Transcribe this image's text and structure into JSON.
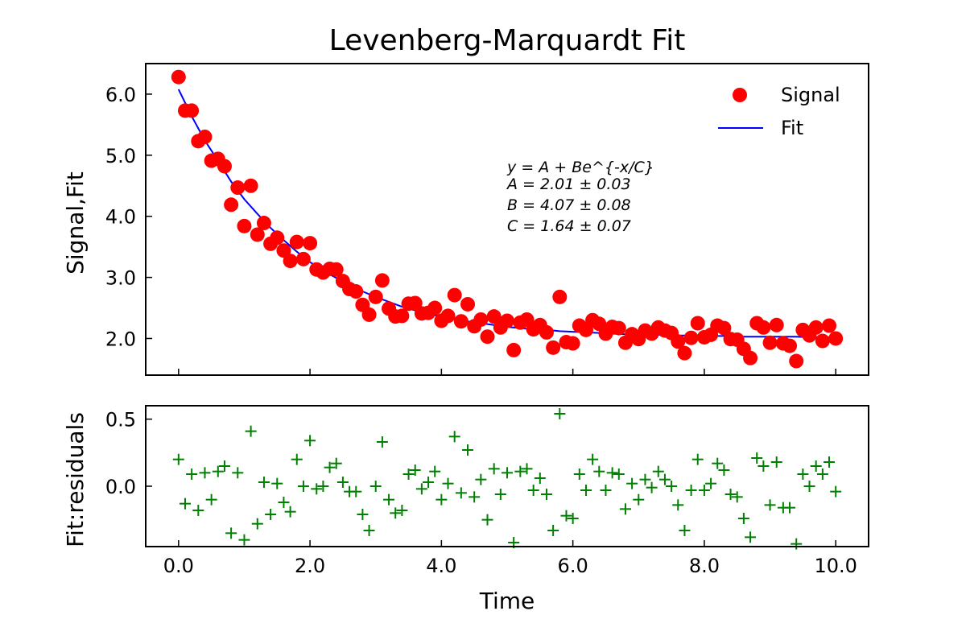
{
  "chart_data": [
    {
      "type": "scatter",
      "title": "Levenberg-Marquardt Fit",
      "xlabel": "",
      "ylabel": "Signal,Fit",
      "xlim": [
        -0.5,
        10.5
      ],
      "ylim": [
        1.4,
        6.5
      ],
      "yticks": [
        "2.0",
        "3.0",
        "4.0",
        "5.0",
        "6.0"
      ],
      "grid": false,
      "legend": {
        "placement": "top-right",
        "entries": [
          "Signal",
          "Fit"
        ]
      },
      "annotation": {
        "equation": "y = A + Be^{-x/C}",
        "lines": [
          "A = 2.01 ± 0.03",
          "B = 4.07 ± 0.08",
          "C = 1.64 ± 0.07"
        ]
      },
      "fit_params": {
        "A": 2.01,
        "B": 4.07,
        "C": 1.64
      },
      "series": [
        {
          "name": "Signal",
          "color": "#ff0000",
          "marker": "circle",
          "x": [
            0.0,
            0.1,
            0.2,
            0.3,
            0.4,
            0.5,
            0.6,
            0.7,
            0.8,
            0.9,
            1.0,
            1.1,
            1.2,
            1.3,
            1.4,
            1.5,
            1.6,
            1.7,
            1.8,
            1.9,
            2.0,
            2.1,
            2.2,
            2.3,
            2.4,
            2.5,
            2.6,
            2.7,
            2.8,
            2.9,
            3.0,
            3.1,
            3.2,
            3.3,
            3.4,
            3.5,
            3.6,
            3.7,
            3.8,
            3.9,
            4.0,
            4.1,
            4.2,
            4.3,
            4.4,
            4.5,
            4.6,
            4.7,
            4.8,
            4.9,
            5.0,
            5.1,
            5.2,
            5.3,
            5.4,
            5.5,
            5.6,
            5.7,
            5.8,
            5.9,
            6.0,
            6.1,
            6.2,
            6.3,
            6.4,
            6.5,
            6.6,
            6.7,
            6.8,
            6.9,
            7.0,
            7.1,
            7.2,
            7.3,
            7.4,
            7.5,
            7.6,
            7.7,
            7.8,
            7.9,
            8.0,
            8.1,
            8.2,
            8.3,
            8.4,
            8.5,
            8.6,
            8.7,
            8.8,
            8.9,
            9.0,
            9.1,
            9.2,
            9.3,
            9.4,
            9.5,
            9.6,
            9.7,
            9.8,
            9.9,
            10.0
          ],
          "y": [
            6.28,
            5.73,
            5.73,
            5.23,
            5.3,
            4.91,
            4.94,
            4.82,
            4.19,
            4.47,
            3.84,
            4.5,
            3.7,
            3.89,
            3.55,
            3.65,
            3.44,
            3.27,
            3.58,
            3.3,
            3.56,
            3.13,
            3.08,
            3.14,
            3.13,
            2.94,
            2.81,
            2.77,
            2.55,
            2.39,
            2.68,
            2.95,
            2.49,
            2.36,
            2.37,
            2.57,
            2.58,
            2.41,
            2.42,
            2.5,
            2.29,
            2.37,
            2.71,
            2.28,
            2.56,
            2.2,
            2.31,
            2.03,
            2.36,
            2.18,
            2.29,
            1.81,
            2.26,
            2.31,
            2.15,
            2.22,
            2.1,
            1.85,
            2.68,
            1.94,
            1.92,
            2.21,
            2.14,
            2.3,
            2.24,
            2.08,
            2.19,
            2.17,
            1.93,
            2.07,
            1.99,
            2.13,
            2.08,
            2.18,
            2.13,
            2.09,
            1.95,
            1.76,
            2.01,
            2.25,
            2.02,
            2.06,
            2.21,
            2.17,
            1.99,
            1.98,
            1.83,
            1.68,
            2.25,
            2.18,
            1.93,
            2.22,
            1.92,
            1.88,
            1.63,
            2.14,
            2.05,
            2.18,
            1.96,
            2.21,
            2.0
          ]
        },
        {
          "name": "Fit",
          "color": "#0000ff",
          "line": true,
          "x": [
            0.0,
            0.2,
            0.4,
            0.6,
            0.8,
            1.0,
            1.2,
            1.4,
            1.6,
            1.8,
            2.0,
            2.2,
            2.4,
            2.6,
            2.8,
            3.0,
            3.2,
            3.4,
            3.6,
            3.8,
            4.0,
            4.2,
            4.4,
            4.6,
            4.8,
            5.0,
            5.2,
            5.4,
            5.6,
            5.8,
            6.0,
            6.2,
            6.4,
            6.6,
            6.8,
            7.0,
            7.2,
            7.4,
            7.6,
            7.8,
            8.0,
            8.2,
            8.4,
            8.6,
            8.8,
            9.0,
            9.2,
            9.4,
            9.6,
            9.8,
            10.0
          ],
          "y": [
            6.08,
            5.64,
            5.24,
            4.91,
            4.57,
            4.28,
            4.04,
            3.81,
            3.61,
            3.42,
            3.25,
            3.11,
            2.99,
            2.88,
            2.77,
            2.68,
            2.6,
            2.52,
            2.46,
            2.4,
            2.36,
            2.32,
            2.28,
            2.25,
            2.22,
            2.19,
            2.17,
            2.15,
            2.14,
            2.12,
            2.11,
            2.1,
            2.09,
            2.08,
            2.07,
            2.07,
            2.06,
            2.06,
            2.05,
            2.05,
            2.04,
            2.04,
            2.04,
            2.03,
            2.03,
            2.03,
            2.03,
            2.03,
            2.02,
            2.02,
            2.02
          ]
        }
      ]
    },
    {
      "type": "scatter",
      "title": "",
      "xlabel": "Time",
      "ylabel": "Fit:residuals",
      "xlim": [
        -0.5,
        10.5
      ],
      "ylim": [
        -0.45,
        0.6
      ],
      "xticks": [
        "0.0",
        "2.0",
        "4.0",
        "6.0",
        "8.0",
        "10.0"
      ],
      "yticks": [
        "0.0",
        "0.5"
      ],
      "grid": false,
      "series": [
        {
          "name": "",
          "color": "#008000",
          "marker": "plus",
          "x": [
            0.0,
            0.1,
            0.2,
            0.3,
            0.4,
            0.5,
            0.6,
            0.7,
            0.8,
            0.9,
            1.0,
            1.1,
            1.2,
            1.3,
            1.4,
            1.5,
            1.6,
            1.7,
            1.8,
            1.9,
            2.0,
            2.1,
            2.2,
            2.3,
            2.4,
            2.5,
            2.6,
            2.7,
            2.8,
            2.9,
            3.0,
            3.1,
            3.2,
            3.3,
            3.4,
            3.5,
            3.6,
            3.7,
            3.8,
            3.9,
            4.0,
            4.1,
            4.2,
            4.3,
            4.4,
            4.5,
            4.6,
            4.7,
            4.8,
            4.9,
            5.0,
            5.1,
            5.2,
            5.3,
            5.4,
            5.5,
            5.6,
            5.7,
            5.8,
            5.9,
            6.0,
            6.1,
            6.2,
            6.3,
            6.4,
            6.5,
            6.6,
            6.7,
            6.8,
            6.9,
            7.0,
            7.1,
            7.2,
            7.3,
            7.4,
            7.5,
            7.6,
            7.7,
            7.8,
            7.9,
            8.0,
            8.1,
            8.2,
            8.3,
            8.4,
            8.5,
            8.6,
            8.7,
            8.8,
            8.9,
            9.0,
            9.1,
            9.2,
            9.3,
            9.4,
            9.5,
            9.6,
            9.7,
            9.8,
            9.9,
            10.0
          ],
          "y": [
            0.2,
            -0.13,
            0.09,
            -0.18,
            0.1,
            -0.1,
            0.11,
            0.15,
            -0.35,
            0.1,
            -0.4,
            0.41,
            -0.28,
            0.03,
            -0.21,
            0.02,
            -0.12,
            -0.19,
            0.2,
            0.0,
            0.34,
            -0.02,
            0.0,
            0.14,
            0.17,
            0.03,
            -0.04,
            -0.04,
            -0.21,
            -0.33,
            0.0,
            0.33,
            -0.1,
            -0.2,
            -0.18,
            0.09,
            0.12,
            -0.02,
            0.03,
            0.11,
            -0.1,
            0.02,
            0.37,
            -0.05,
            0.27,
            -0.08,
            0.05,
            -0.25,
            0.13,
            -0.06,
            0.1,
            -0.42,
            0.11,
            0.13,
            -0.03,
            0.06,
            -0.06,
            -0.33,
            0.54,
            -0.22,
            -0.24,
            0.09,
            -0.03,
            0.2,
            0.11,
            -0.03,
            0.1,
            0.09,
            -0.17,
            0.02,
            -0.1,
            0.05,
            -0.01,
            0.11,
            0.05,
            0.0,
            -0.14,
            -0.33,
            -0.03,
            0.2,
            -0.03,
            0.02,
            0.17,
            0.12,
            -0.06,
            -0.08,
            -0.24,
            -0.38,
            0.21,
            0.15,
            -0.14,
            0.18,
            -0.16,
            -0.16,
            -0.43,
            0.09,
            0.0,
            0.15,
            0.09,
            0.18,
            -0.04
          ]
        }
      ]
    }
  ]
}
